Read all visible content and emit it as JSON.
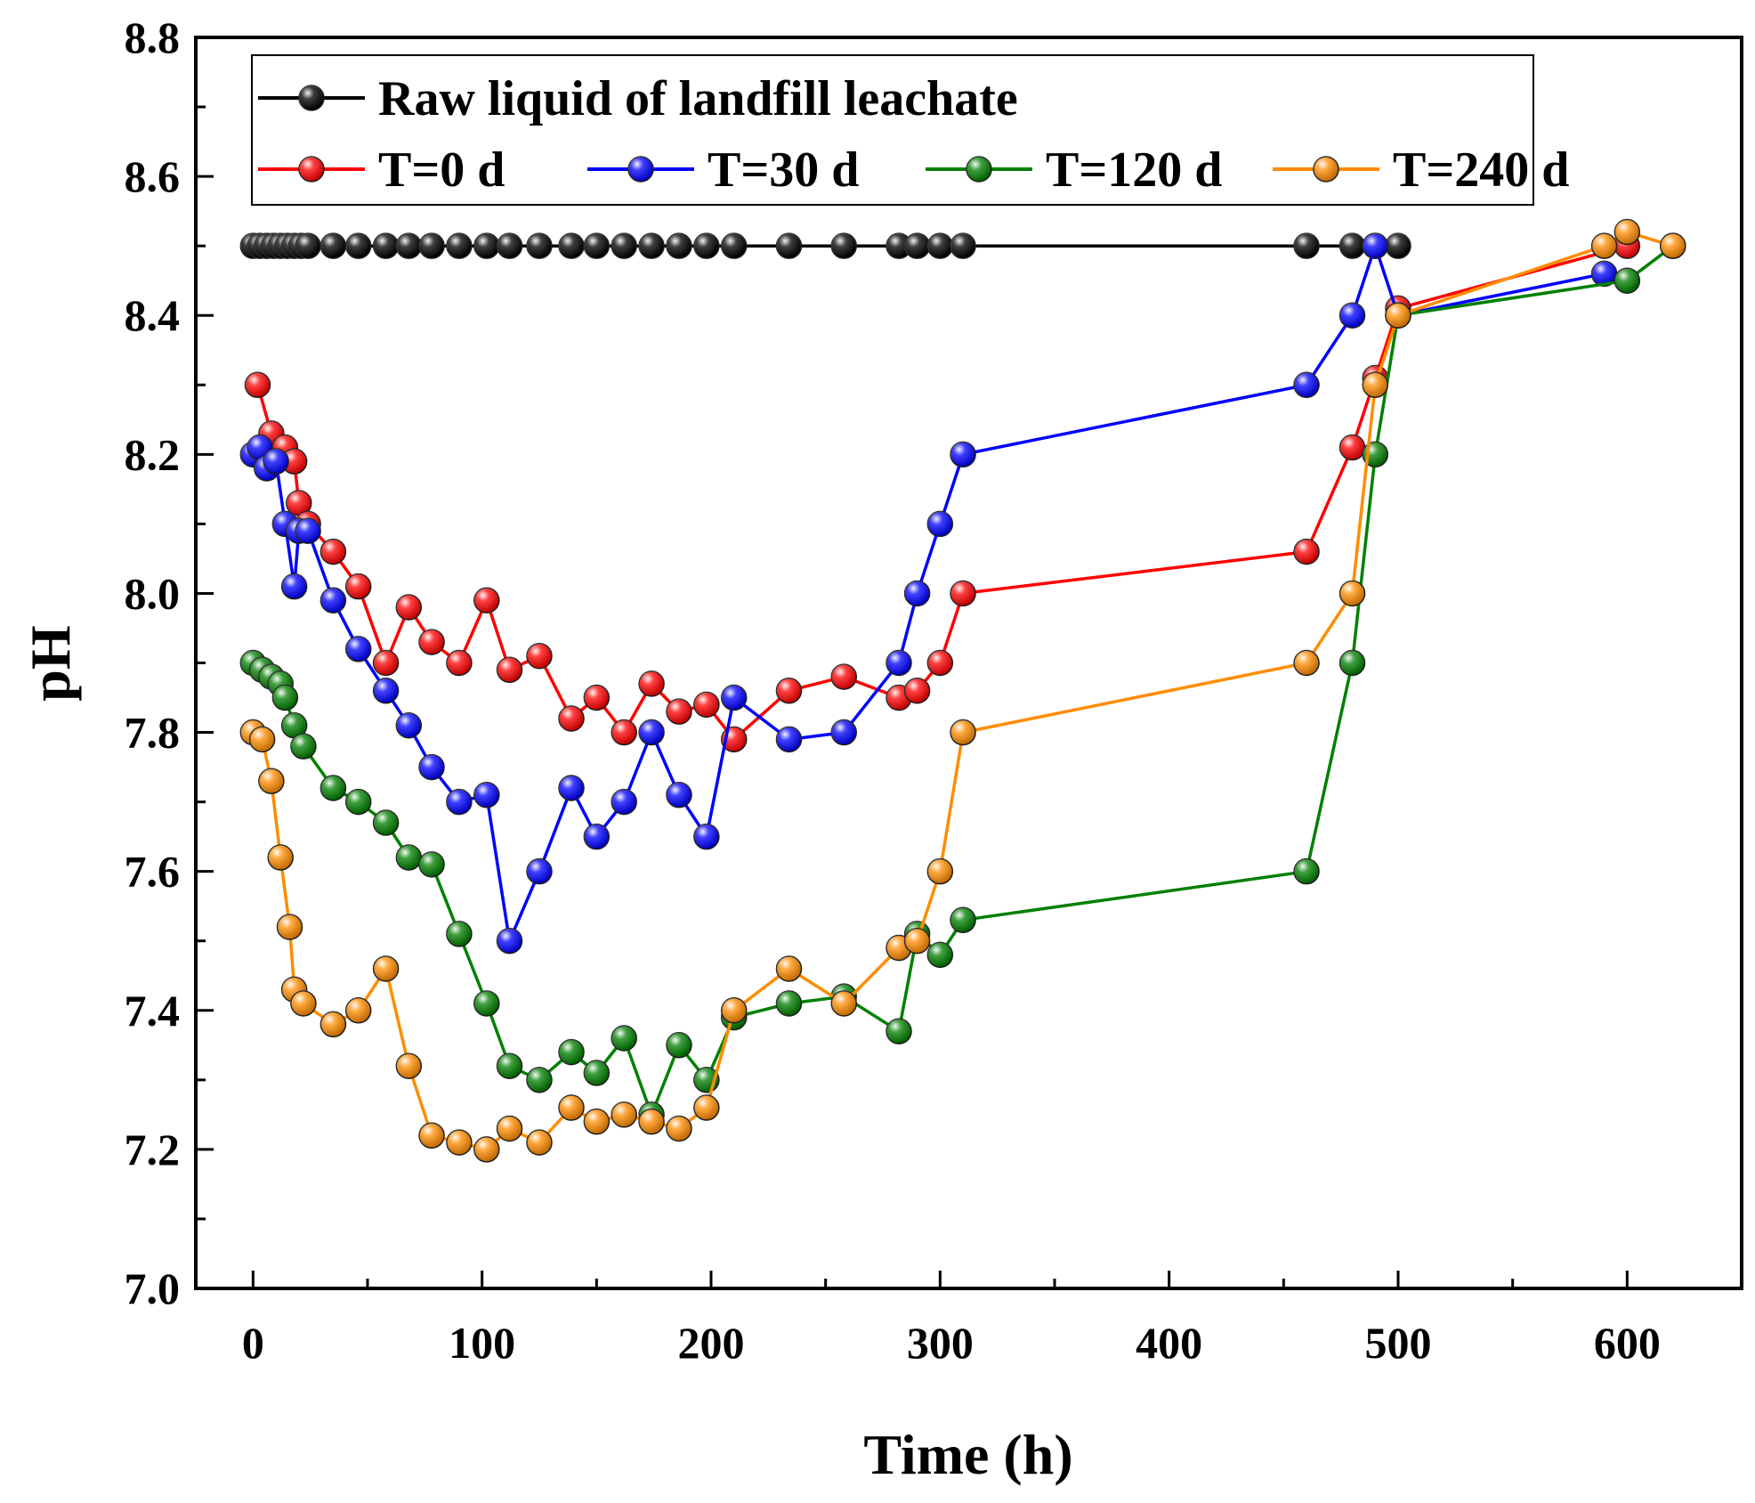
{
  "chart_data": {
    "type": "line",
    "title": "",
    "xlabel": "Time (h)",
    "ylabel": "pH",
    "xlim": [
      -25,
      650
    ],
    "ylim": [
      7.0,
      8.8
    ],
    "xticks": [
      0,
      100,
      200,
      300,
      400,
      500,
      600
    ],
    "xtick_labels": [
      "0",
      "100",
      "200",
      "300",
      "400",
      "500",
      "600"
    ],
    "yticks": [
      7.0,
      7.2,
      7.4,
      7.6,
      7.8,
      8.0,
      8.2,
      8.4,
      8.6,
      8.8
    ],
    "ytick_labels": [
      "7.0",
      "7.2",
      "7.4",
      "7.6",
      "7.8",
      "8.0",
      "8.2",
      "8.4",
      "8.6",
      "8.8"
    ],
    "grid": false,
    "legend_position": "top-left",
    "series": [
      {
        "name": "Raw liquid of landfill leachate",
        "color": "#000000",
        "x": [
          0,
          3,
          6,
          9,
          12,
          15,
          18,
          21,
          24,
          35,
          46,
          58,
          68,
          78,
          90,
          102,
          112,
          125,
          139,
          150,
          162,
          174,
          186,
          198,
          210,
          234,
          258,
          282,
          290,
          300,
          310,
          460,
          480,
          490,
          500
        ],
        "y": [
          8.5,
          8.5,
          8.5,
          8.5,
          8.5,
          8.5,
          8.5,
          8.5,
          8.5,
          8.5,
          8.5,
          8.5,
          8.5,
          8.5,
          8.5,
          8.5,
          8.5,
          8.5,
          8.5,
          8.5,
          8.5,
          8.5,
          8.5,
          8.5,
          8.5,
          8.5,
          8.5,
          8.5,
          8.5,
          8.5,
          8.5,
          8.5,
          8.5,
          8.5,
          8.5
        ]
      },
      {
        "name": "T=0 d",
        "color": "#ff0000",
        "x": [
          2,
          8,
          14,
          18,
          20,
          24,
          35,
          46,
          58,
          68,
          78,
          90,
          102,
          112,
          125,
          139,
          150,
          162,
          174,
          186,
          198,
          210,
          234,
          258,
          282,
          290,
          300,
          310,
          460,
          480,
          490,
          500,
          600
        ],
        "y": [
          8.3,
          8.23,
          8.21,
          8.19,
          8.13,
          8.1,
          8.06,
          8.01,
          7.9,
          7.98,
          7.93,
          7.9,
          7.99,
          7.89,
          7.91,
          7.82,
          7.85,
          7.8,
          7.87,
          7.83,
          7.84,
          7.79,
          7.86,
          7.88,
          7.85,
          7.86,
          7.9,
          8.0,
          8.06,
          8.21,
          8.31,
          8.41,
          8.5
        ]
      },
      {
        "name": "T=30 d",
        "color": "#0000ff",
        "x": [
          0,
          3,
          6,
          10,
          14,
          18,
          20,
          24,
          35,
          46,
          58,
          68,
          78,
          90,
          102,
          112,
          125,
          139,
          150,
          162,
          174,
          186,
          198,
          210,
          234,
          258,
          282,
          290,
          300,
          310,
          460,
          480,
          490,
          500,
          590
        ],
        "y": [
          8.2,
          8.21,
          8.18,
          8.19,
          8.1,
          8.01,
          8.09,
          8.09,
          7.99,
          7.92,
          7.86,
          7.81,
          7.75,
          7.7,
          7.71,
          7.5,
          7.6,
          7.72,
          7.65,
          7.7,
          7.8,
          7.71,
          7.65,
          7.85,
          7.79,
          7.8,
          7.9,
          8.0,
          8.1,
          8.2,
          8.3,
          8.4,
          8.5,
          8.4,
          8.46
        ]
      },
      {
        "name": "T=120 d",
        "color": "#008000",
        "x": [
          0,
          4,
          8,
          12,
          14,
          18,
          22,
          35,
          46,
          58,
          68,
          78,
          90,
          102,
          112,
          125,
          139,
          150,
          162,
          174,
          186,
          198,
          210,
          234,
          258,
          282,
          290,
          300,
          310,
          460,
          480,
          490,
          500,
          600,
          620
        ],
        "y": [
          7.9,
          7.89,
          7.88,
          7.87,
          7.85,
          7.81,
          7.78,
          7.72,
          7.7,
          7.67,
          7.62,
          7.61,
          7.51,
          7.41,
          7.32,
          7.3,
          7.34,
          7.31,
          7.36,
          7.25,
          7.35,
          7.3,
          7.39,
          7.41,
          7.42,
          7.37,
          7.51,
          7.48,
          7.53,
          7.6,
          7.9,
          8.2,
          8.4,
          8.45,
          8.5
        ]
      },
      {
        "name": "T=240 d",
        "color": "#ff8c00",
        "x": [
          0,
          4,
          8,
          12,
          16,
          18,
          22,
          35,
          46,
          58,
          68,
          78,
          90,
          102,
          112,
          125,
          139,
          150,
          162,
          174,
          186,
          198,
          210,
          234,
          258,
          282,
          290,
          300,
          310,
          460,
          480,
          490,
          500,
          590,
          600,
          620
        ],
        "y": [
          7.8,
          7.79,
          7.73,
          7.62,
          7.52,
          7.43,
          7.41,
          7.38,
          7.4,
          7.46,
          7.32,
          7.22,
          7.21,
          7.2,
          7.23,
          7.21,
          7.26,
          7.24,
          7.25,
          7.24,
          7.23,
          7.26,
          7.4,
          7.46,
          7.41,
          7.49,
          7.5,
          7.6,
          7.8,
          7.9,
          8.0,
          8.3,
          8.4,
          8.5,
          8.52,
          8.5
        ]
      }
    ]
  }
}
